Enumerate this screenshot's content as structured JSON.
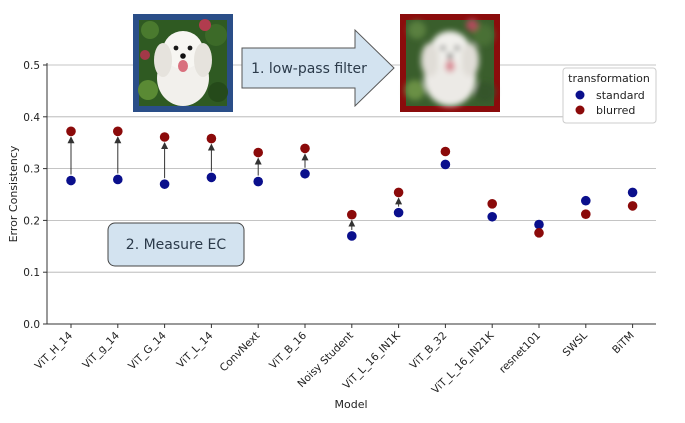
{
  "chart_data": {
    "type": "scatter",
    "xlabel": "Model",
    "ylabel": "Error Consistency",
    "ylim": [
      0,
      0.5
    ],
    "yticks": [
      "0.0",
      "0.1",
      "0.2",
      "0.3",
      "0.4",
      "0.5"
    ],
    "grid": "horizontal",
    "categories": [
      "ViT_H_14",
      "ViT_g_14",
      "ViT_G_14",
      "ViT_L_14",
      "ConvNext",
      "ViT_B_16",
      "Noisy Student",
      "ViT_L_16_IN1K",
      "ViT_B_32",
      "ViT_L_16_IN21K",
      "resnet101",
      "SWSL",
      "BiTM"
    ],
    "series": [
      {
        "name": "standard",
        "color": "#0a0f8c",
        "values": [
          0.277,
          0.279,
          0.27,
          0.283,
          0.275,
          0.29,
          0.17,
          0.215,
          0.308,
          0.207,
          0.192,
          0.238,
          0.254
        ]
      },
      {
        "name": "blurred",
        "color": "#8b0a0a",
        "values": [
          0.372,
          0.372,
          0.361,
          0.358,
          0.331,
          0.339,
          0.211,
          0.254,
          0.333,
          0.232,
          0.176,
          0.212,
          0.228
        ]
      }
    ],
    "arrows_on": [
      "ViT_H_14",
      "ViT_g_14",
      "ViT_G_14",
      "ViT_L_14",
      "ConvNext",
      "ViT_B_16",
      "Noisy Student",
      "ViT_L_16_IN1K"
    ],
    "legend": {
      "title": "transformation",
      "placement": "top-right"
    },
    "annotations": {
      "step1": "1. low-pass filter",
      "step2": "2. Measure EC"
    }
  }
}
